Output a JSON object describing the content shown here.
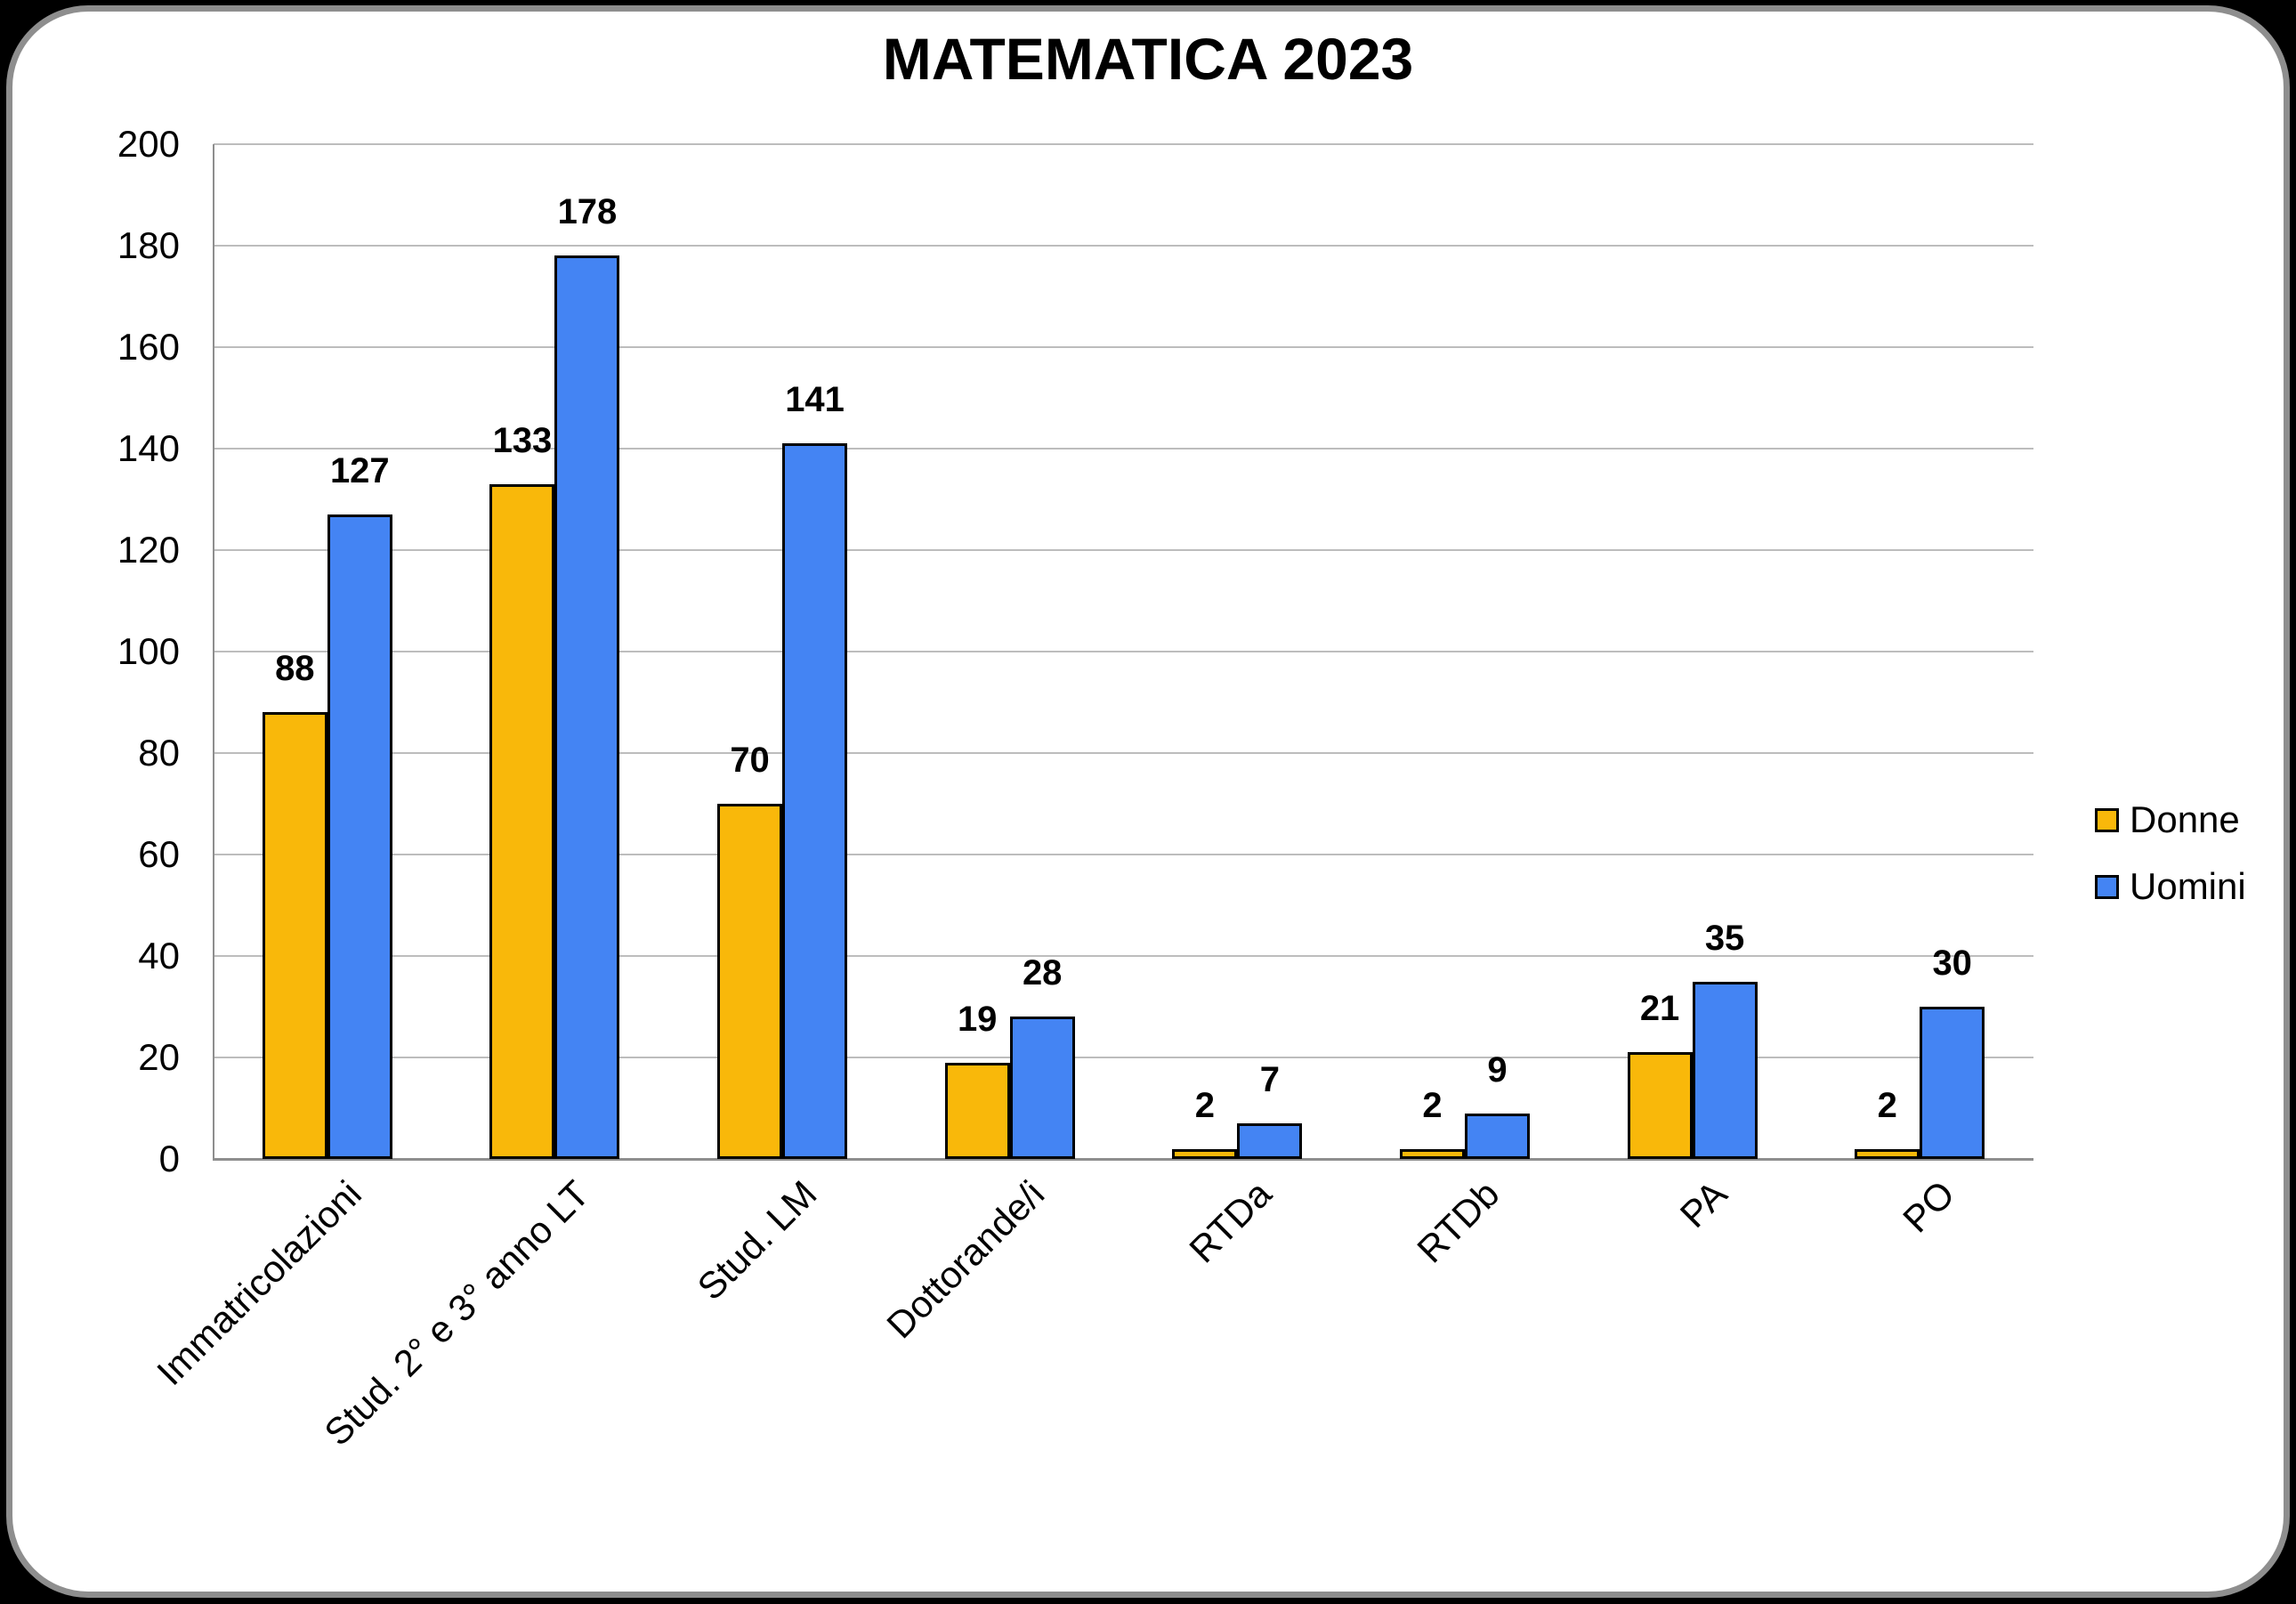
{
  "frame": {
    "background": "#000000",
    "card_background": "#FFFFFF",
    "card_border_color": "#8E8E8E"
  },
  "chart_data": {
    "type": "bar",
    "title": "MATEMATICA 2023",
    "categories": [
      "Immatricolazioni",
      "Stud. 2° e 3° anno LT",
      "Stud. LM",
      "Dottorande/i",
      "RTDa",
      "RTDb",
      "PA",
      "PO"
    ],
    "series": [
      {
        "name": "Donne",
        "color": "#F9B80A",
        "values": [
          88,
          133,
          70,
          19,
          2,
          2,
          21,
          2
        ]
      },
      {
        "name": "Uomini",
        "color": "#4484F3",
        "values": [
          127,
          178,
          141,
          28,
          7,
          9,
          35,
          30
        ]
      }
    ],
    "data_labels": true,
    "xlabel": "",
    "ylabel": "",
    "ylim": [
      0,
      200
    ],
    "yticks": [
      0,
      20,
      40,
      60,
      80,
      100,
      120,
      140,
      160,
      180,
      200
    ],
    "grid": true,
    "legend_position": "right",
    "colors": {
      "gridline": "#BDBDBD",
      "axis": "#8E8E8E",
      "bar_border": "#000000",
      "text": "#000000"
    }
  }
}
